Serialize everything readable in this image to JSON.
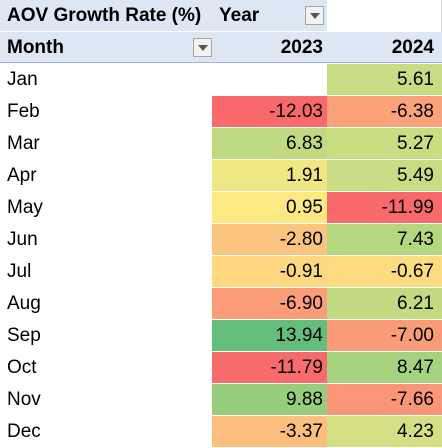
{
  "pivot": {
    "title": "AOV Growth Rate (%)",
    "column_field": "Year",
    "row_field": "Month",
    "filter_icon": "dropdown-arrow-icon",
    "years": [
      "2023",
      "2024"
    ],
    "rows": [
      {
        "month": "Jan",
        "v2023": "",
        "v2024": "5.61",
        "bg2023": "#ffffff",
        "bg2024": "#c7dc83"
      },
      {
        "month": "Feb",
        "v2023": "-12.03",
        "v2024": "-6.38",
        "bg2023": "#f8696b",
        "bg2024": "#fca27a"
      },
      {
        "month": "Mar",
        "v2023": "6.83",
        "v2024": "5.27",
        "bg2023": "#bfda81",
        "bg2024": "#c9dd83"
      },
      {
        "month": "Apr",
        "v2023": "1.91",
        "v2024": "5.49",
        "bg2023": "#f0e784",
        "bg2024": "#c8dd83"
      },
      {
        "month": "May",
        "v2023": "0.95",
        "v2024": "-11.99",
        "bg2023": "#fde984",
        "bg2024": "#f8696b"
      },
      {
        "month": "Jun",
        "v2023": "-2.80",
        "v2024": "7.43",
        "bg2023": "#fbc47e",
        "bg2024": "#b4d780"
      },
      {
        "month": "Jul",
        "v2023": "-0.91",
        "v2024": "-0.67",
        "bg2023": "#fdd881",
        "bg2024": "#fddb81"
      },
      {
        "month": "Aug",
        "v2023": "-6.90",
        "v2024": "6.21",
        "bg2023": "#fb9d79",
        "bg2024": "#c2db82"
      },
      {
        "month": "Sep",
        "v2023": "13.94",
        "v2024": "-7.00",
        "bg2023": "#63be7b",
        "bg2024": "#fb9c78"
      },
      {
        "month": "Oct",
        "v2023": "-11.79",
        "v2024": "8.47",
        "bg2023": "#f86b6c",
        "bg2024": "#a6d27f"
      },
      {
        "month": "Nov",
        "v2023": "9.88",
        "v2024": "-7.66",
        "bg2023": "#98cd7e",
        "bg2024": "#fb9577"
      },
      {
        "month": "Dec",
        "v2023": "-3.37",
        "v2024": "4.23",
        "bg2023": "#fcbf7d",
        "bg2024": "#d6df83"
      }
    ]
  }
}
